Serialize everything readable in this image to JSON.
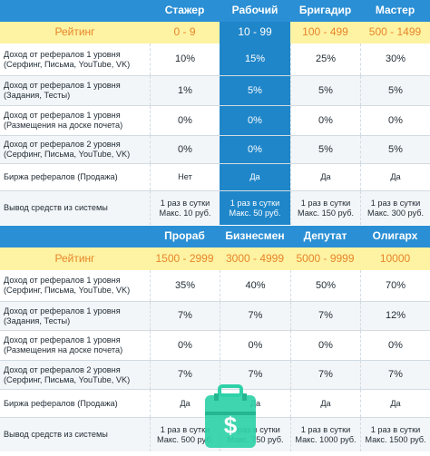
{
  "colors": {
    "header_blue": "#2a8fd4",
    "highlight_blue": "#1f86c9",
    "rating_yellow": "#fdf3a3",
    "rating_orange": "#e8852a",
    "case_green": "#2fd1a8"
  },
  "table1": {
    "headers": [
      "",
      "Стажер",
      "Рабочий",
      "Бригадир",
      "Мастер"
    ],
    "rating": [
      "Рейтинг",
      "0 - 9",
      "10 - 99",
      "100 - 499",
      "500 - 1499"
    ],
    "rows": [
      {
        "label": "Доход от рефералов 1 уровня (Серфинг, Письма, YouTube, VK)",
        "values": [
          "10%",
          "15%",
          "25%",
          "30%"
        ]
      },
      {
        "label": "Доход от рефералов 1 уровня (Задания, Тесты)",
        "values": [
          "1%",
          "5%",
          "5%",
          "5%"
        ]
      },
      {
        "label": "Доход от рефералов 1 уровня (Размещения на доске почета)",
        "values": [
          "0%",
          "0%",
          "0%",
          "0%"
        ]
      },
      {
        "label": "Доход от рефералов 2 уровня (Серфинг, Письма, YouTube, VK)",
        "values": [
          "0%",
          "0%",
          "5%",
          "5%"
        ]
      },
      {
        "label": "Биржа рефералов (Продажа)",
        "values": [
          "Нет",
          "Да",
          "Да",
          "Да"
        ]
      },
      {
        "label": "Вывод средств из системы",
        "values": [
          "1 раз в сутки Макс. 10 руб.",
          "1 раз в сутки Макс. 50 руб.",
          "1 раз в сутки Макс. 150 руб.",
          "1 раз в сутки Макс. 300 руб."
        ]
      }
    ]
  },
  "table2": {
    "headers": [
      "",
      "Прораб",
      "Бизнесмен",
      "Депутат",
      "Олигарх"
    ],
    "rating": [
      "Рейтинг",
      "1500 - 2999",
      "3000 - 4999",
      "5000 - 9999",
      "10000"
    ],
    "rows": [
      {
        "label": "Доход от рефералов 1 уровня (Серфинг, Письма, YouTube, VK)",
        "values": [
          "35%",
          "40%",
          "50%",
          "70%"
        ]
      },
      {
        "label": "Доход от рефералов 1 уровня (Задания, Тесты)",
        "values": [
          "7%",
          "7%",
          "7%",
          "12%"
        ]
      },
      {
        "label": "Доход от рефералов 1 уровня (Размещения на доске почета)",
        "values": [
          "0%",
          "0%",
          "0%",
          "0%"
        ]
      },
      {
        "label": "Доход от рефералов 2 уровня (Серфинг, Письма, YouTube, VK)",
        "values": [
          "7%",
          "7%",
          "7%",
          "7%"
        ]
      },
      {
        "label": "Биржа рефералов (Продажа)",
        "values": [
          "Да",
          "Да",
          "Да",
          "Да"
        ]
      },
      {
        "label": "Вывод средств из системы",
        "values": [
          "1 раз в сутки Макс. 500 руб.",
          "1 раз в сутки Макс. 750 руб.",
          "1 раз в сутки Макс. 1000 руб.",
          "1 раз в сутки Макс. 1500 руб."
        ]
      }
    ]
  },
  "icons": {
    "case": "money-case-icon"
  }
}
